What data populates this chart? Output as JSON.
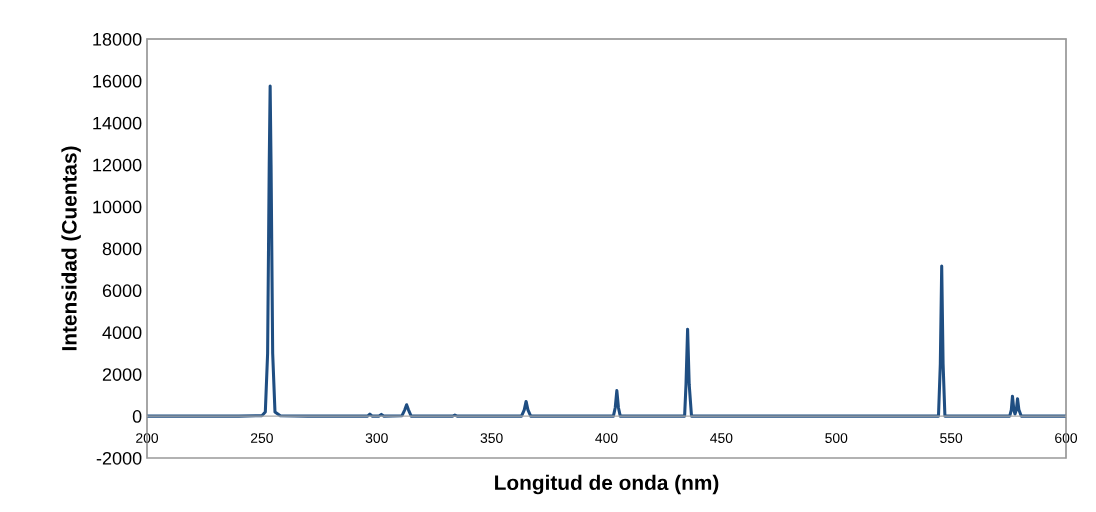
{
  "chart_data": {
    "type": "line",
    "xlabel": "Longitud de onda (nm)",
    "ylabel": "Intensidad (Cuentas)",
    "series": [
      {
        "color": "#1f4e82",
        "x": [
          200,
          220,
          240,
          250,
          251.5,
          252.5,
          253.2,
          253.6,
          254.0,
          254.7,
          255.7,
          258,
          270,
          290,
          296,
          297,
          298,
          301,
          302,
          303,
          311,
          312.2,
          313.0,
          313.8,
          315,
          333,
          334,
          335,
          363,
          364.2,
          365.0,
          365.8,
          367,
          403,
          403.8,
          404.5,
          405.2,
          406,
          434,
          434.6,
          435.3,
          436.0,
          437,
          500,
          544.5,
          545.3,
          545.9,
          546.5,
          547.3,
          575.5,
          576.2,
          576.7,
          577.3,
          577.8,
          578.4,
          578.9,
          579.5,
          580.5,
          600
        ],
        "values": [
          0,
          0,
          0,
          20,
          200,
          3000,
          12000,
          15750,
          12000,
          3000,
          200,
          20,
          0,
          0,
          0,
          100,
          0,
          0,
          80,
          0,
          20,
          300,
          540,
          300,
          0,
          0,
          50,
          0,
          0,
          300,
          700,
          300,
          0,
          0,
          400,
          1220,
          400,
          0,
          0,
          1500,
          4150,
          1500,
          0,
          0,
          0,
          2500,
          7160,
          2500,
          0,
          0,
          300,
          950,
          300,
          100,
          300,
          830,
          300,
          0,
          0
        ]
      }
    ],
    "xlim": [
      200,
      600
    ],
    "xticks": [
      200,
      250,
      300,
      350,
      400,
      450,
      500,
      550,
      600
    ],
    "ylim": [
      -2000,
      18000
    ],
    "yticks": [
      -2000,
      0,
      2000,
      4000,
      6000,
      8000,
      10000,
      12000,
      14000,
      16000,
      18000
    ],
    "legend": false,
    "marker": "none",
    "line_style": "solid"
  }
}
